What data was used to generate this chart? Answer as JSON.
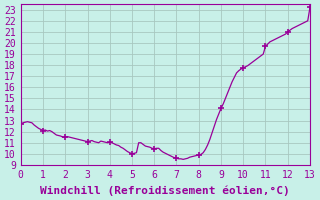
{
  "title": "",
  "xlabel": "Windchill (Refroidissement éolien,°C)",
  "ylabel": "",
  "bg_color": "#c8f0e8",
  "grid_color": "#a8c8c0",
  "line_color": "#990099",
  "marker_color": "#990099",
  "xlim": [
    0,
    13
  ],
  "ylim": [
    9,
    23.5
  ],
  "xticks": [
    0,
    1,
    2,
    3,
    4,
    5,
    6,
    7,
    8,
    9,
    10,
    11,
    12,
    13
  ],
  "yticks": [
    9,
    10,
    11,
    12,
    13,
    14,
    15,
    16,
    17,
    18,
    19,
    20,
    21,
    22,
    23
  ],
  "x": [
    0.0,
    0.1,
    0.2,
    0.3,
    0.4,
    0.5,
    0.6,
    0.7,
    0.8,
    0.9,
    1.0,
    1.1,
    1.2,
    1.3,
    1.4,
    1.5,
    1.6,
    1.7,
    1.8,
    1.9,
    2.0,
    2.1,
    2.2,
    2.3,
    2.4,
    2.5,
    2.6,
    2.7,
    2.8,
    2.9,
    3.0,
    3.1,
    3.2,
    3.3,
    3.4,
    3.5,
    3.6,
    3.7,
    3.8,
    3.9,
    4.0,
    4.1,
    4.2,
    4.3,
    4.4,
    4.5,
    4.6,
    4.7,
    4.8,
    4.9,
    5.0,
    5.1,
    5.2,
    5.3,
    5.4,
    5.5,
    5.6,
    5.7,
    5.8,
    5.9,
    6.0,
    6.1,
    6.2,
    6.3,
    6.4,
    6.5,
    6.6,
    6.7,
    6.8,
    6.9,
    7.0,
    7.1,
    7.2,
    7.3,
    7.4,
    7.5,
    7.6,
    7.7,
    7.8,
    7.9,
    8.0,
    8.1,
    8.2,
    8.3,
    8.4,
    8.5,
    8.6,
    8.7,
    8.8,
    8.9,
    9.0,
    9.1,
    9.2,
    9.3,
    9.4,
    9.5,
    9.6,
    9.7,
    9.8,
    9.9,
    10.0,
    10.1,
    10.2,
    10.3,
    10.4,
    10.5,
    10.6,
    10.7,
    10.8,
    10.9,
    11.0,
    11.1,
    11.2,
    11.3,
    11.4,
    11.5,
    11.6,
    11.7,
    11.8,
    11.9,
    12.0,
    12.1,
    12.2,
    12.3,
    12.4,
    12.5,
    12.6,
    12.7,
    12.8,
    12.9,
    13.0
  ],
  "y": [
    12.7,
    12.8,
    12.85,
    12.9,
    12.85,
    12.8,
    12.6,
    12.45,
    12.3,
    12.2,
    12.1,
    12.15,
    12.05,
    12.1,
    12.0,
    11.85,
    11.7,
    11.65,
    11.6,
    11.5,
    11.5,
    11.55,
    11.5,
    11.45,
    11.4,
    11.35,
    11.3,
    11.25,
    11.2,
    11.15,
    11.1,
    11.15,
    11.2,
    11.1,
    11.05,
    11.0,
    11.15,
    11.1,
    11.05,
    11.0,
    11.05,
    11.0,
    10.9,
    10.8,
    10.75,
    10.6,
    10.5,
    10.35,
    10.2,
    10.1,
    10.0,
    10.05,
    10.1,
    11.0,
    11.0,
    10.85,
    10.7,
    10.65,
    10.6,
    10.5,
    10.45,
    10.5,
    10.5,
    10.3,
    10.15,
    10.05,
    9.95,
    9.85,
    9.75,
    9.65,
    9.6,
    9.55,
    9.55,
    9.5,
    9.55,
    9.6,
    9.7,
    9.75,
    9.8,
    9.85,
    9.9,
    9.95,
    10.1,
    10.4,
    10.8,
    11.3,
    11.9,
    12.5,
    13.1,
    13.6,
    14.1,
    14.5,
    15.0,
    15.5,
    16.0,
    16.5,
    16.9,
    17.3,
    17.5,
    17.65,
    17.75,
    17.85,
    17.95,
    18.1,
    18.25,
    18.4,
    18.55,
    18.7,
    18.85,
    19.0,
    19.7,
    19.9,
    20.1,
    20.2,
    20.3,
    20.4,
    20.5,
    20.6,
    20.7,
    20.8,
    21.0,
    21.15,
    21.3,
    21.4,
    21.5,
    21.6,
    21.7,
    21.8,
    21.9,
    22.0,
    23.2
  ],
  "marker_x": [
    0,
    1,
    2,
    3,
    4,
    5,
    6,
    7,
    8,
    9,
    10,
    11,
    12,
    13
  ],
  "marker_y": [
    12.7,
    12.1,
    11.5,
    11.1,
    11.05,
    10.0,
    10.45,
    9.6,
    9.9,
    14.1,
    17.75,
    19.7,
    21.0,
    23.2
  ],
  "font_family": "monospace",
  "tick_fontsize": 7,
  "xlabel_fontsize": 8
}
